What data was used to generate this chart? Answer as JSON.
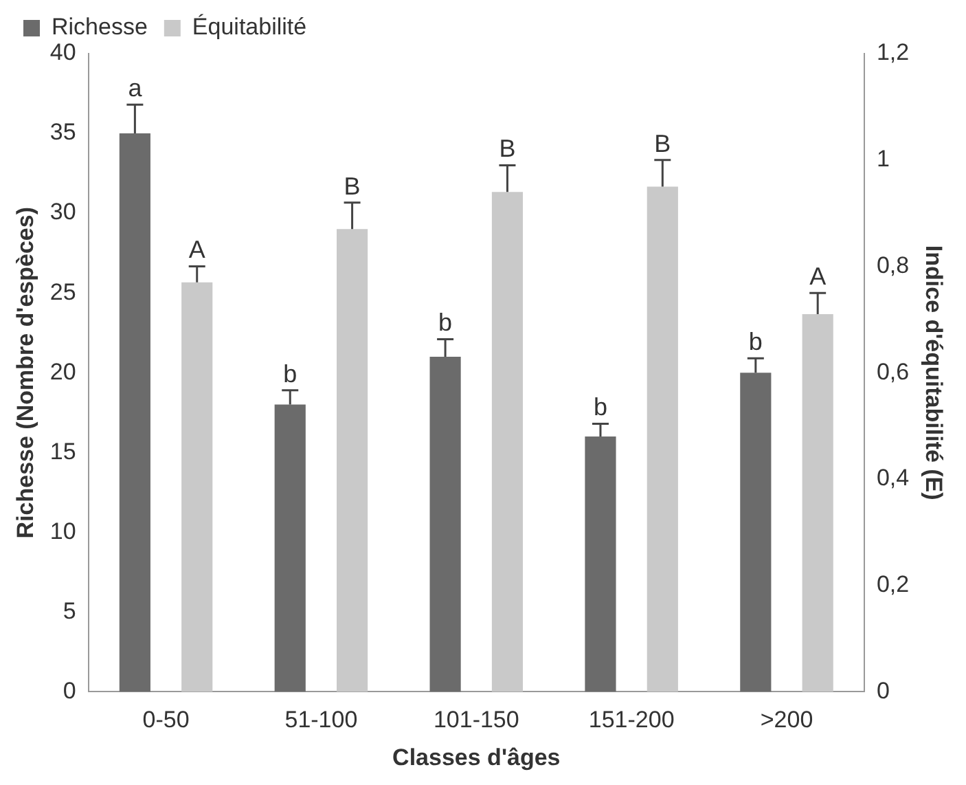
{
  "chart_data": {
    "type": "bar",
    "xlabel": "Classes d'âges",
    "ylabel": "Richesse (Nombre d'espèces)",
    "y2label": "Indice d'équitabilité (E)",
    "categories": [
      "0-50",
      "51-100",
      "101-150",
      "151-200",
      ">200"
    ],
    "series": [
      {
        "name": "Richesse",
        "color": "#6b6b6b",
        "values": [
          35,
          18,
          21,
          16,
          20
        ],
        "errors": [
          1.8,
          0.9,
          1.1,
          0.8,
          0.9
        ],
        "value_labels": [
          "a",
          "b",
          "b",
          "b",
          "b"
        ]
      },
      {
        "name": "Équitabilité",
        "color": "#c9c9c9",
        "axis": "y2",
        "values": [
          0.77,
          0.87,
          0.94,
          0.95,
          0.71
        ],
        "errors": [
          0.03,
          0.05,
          0.05,
          0.05,
          0.04
        ],
        "value_labels": [
          "A",
          "B",
          "B",
          "B",
          "A"
        ]
      }
    ],
    "ylim": [
      0,
      40
    ],
    "yticks": [
      0,
      5,
      10,
      15,
      20,
      25,
      30,
      35,
      40
    ],
    "y2lim": [
      0,
      1.2
    ],
    "y2ticks": [
      0,
      {
        "value": 0.2,
        "label": "0,2"
      },
      {
        "value": 0.4,
        "label": "0,4"
      },
      {
        "value": 0.6,
        "label": "0,6"
      },
      {
        "value": 0.8,
        "label": "0,8"
      },
      1,
      {
        "value": 1.2,
        "label": "1,2"
      }
    ],
    "legend": "top left",
    "grid": false
  }
}
